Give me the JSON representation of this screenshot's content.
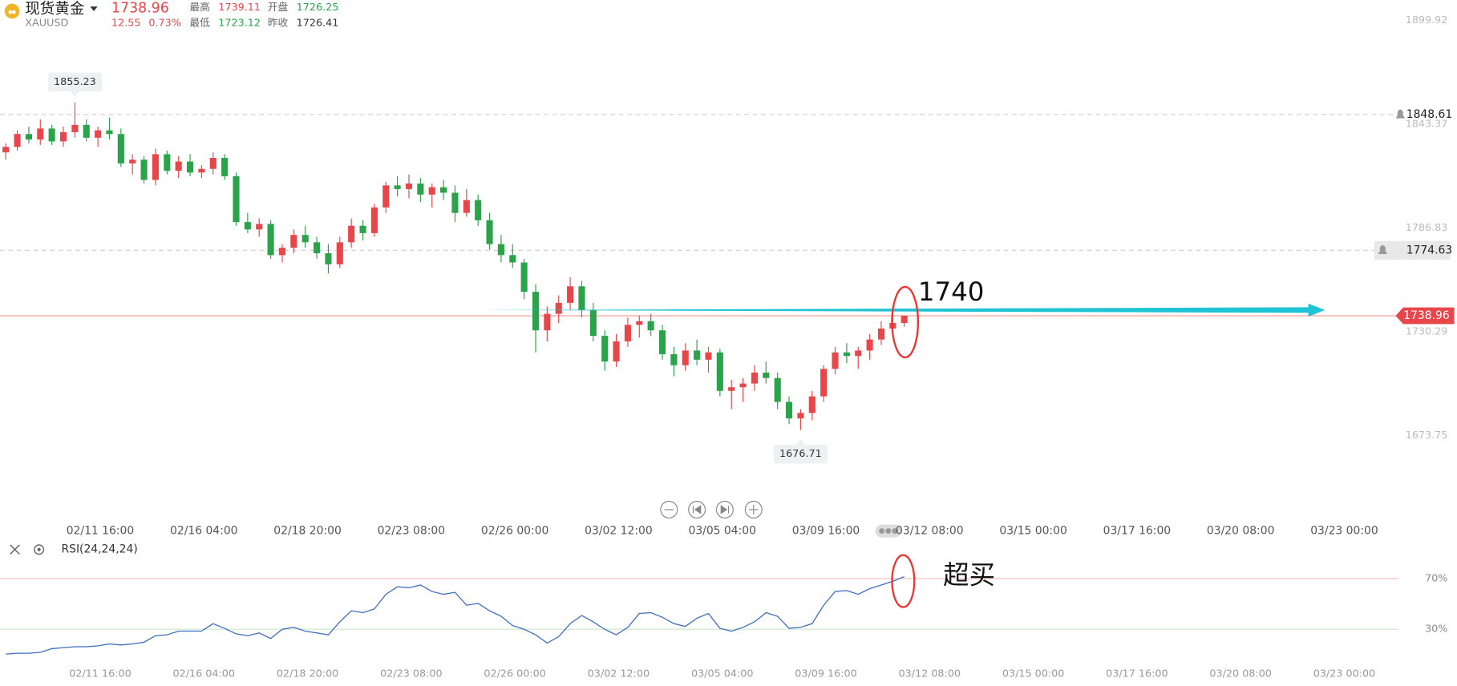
{
  "header": {
    "name": "现货黄金",
    "symbol": "XAUUSD",
    "price": 1738.96,
    "change": 12.55,
    "change_pct": "0.73%",
    "high_label": "最高",
    "high": 1739.11,
    "open_label": "开盘",
    "open": 1726.25,
    "low_label": "最低",
    "low": 1723.12,
    "prev_close_label": "昨收",
    "prev_close": 1726.41
  },
  "chart_data": [
    {
      "type": "candlestick",
      "up_color": "#e8464a",
      "down_color": "#2aa34a",
      "values": [
        [
          1828,
          1833,
          1824,
          1831
        ],
        [
          1831,
          1840,
          1829,
          1838
        ],
        [
          1838,
          1842,
          1833,
          1835
        ],
        [
          1835,
          1846,
          1832,
          1841
        ],
        [
          1841,
          1843,
          1832,
          1834
        ],
        [
          1834,
          1842,
          1831,
          1839
        ],
        [
          1839,
          1855.23,
          1836,
          1843
        ],
        [
          1843,
          1846,
          1834,
          1836
        ],
        [
          1836,
          1842,
          1831,
          1840
        ],
        [
          1840,
          1847,
          1835,
          1838
        ],
        [
          1838,
          1841,
          1820,
          1822
        ],
        [
          1822,
          1827,
          1816,
          1824
        ],
        [
          1824,
          1826,
          1811,
          1813
        ],
        [
          1813,
          1830,
          1810,
          1827
        ],
        [
          1827,
          1829,
          1816,
          1818
        ],
        [
          1818,
          1826,
          1814,
          1823
        ],
        [
          1823,
          1827,
          1815,
          1817
        ],
        [
          1817,
          1821,
          1814,
          1819
        ],
        [
          1819,
          1828,
          1816,
          1825
        ],
        [
          1825,
          1827,
          1813,
          1815
        ],
        [
          1815,
          1817,
          1788,
          1790
        ],
        [
          1790,
          1795,
          1784,
          1786
        ],
        [
          1786,
          1792,
          1782,
          1789
        ],
        [
          1789,
          1791,
          1770,
          1772
        ],
        [
          1772,
          1778,
          1768,
          1776
        ],
        [
          1776,
          1786,
          1773,
          1783
        ],
        [
          1783,
          1788,
          1776,
          1779
        ],
        [
          1779,
          1782,
          1770,
          1773
        ],
        [
          1773,
          1778,
          1762,
          1767
        ],
        [
          1767,
          1782,
          1765,
          1779
        ],
        [
          1779,
          1792,
          1776,
          1788
        ],
        [
          1788,
          1791,
          1780,
          1784
        ],
        [
          1784,
          1800,
          1782,
          1798
        ],
        [
          1798,
          1812,
          1795,
          1810
        ],
        [
          1810,
          1815,
          1804,
          1808
        ],
        [
          1808,
          1816,
          1803,
          1811
        ],
        [
          1811,
          1814,
          1801,
          1805
        ],
        [
          1805,
          1811,
          1798,
          1809
        ],
        [
          1809,
          1813,
          1802,
          1806
        ],
        [
          1806,
          1810,
          1790,
          1795
        ],
        [
          1795,
          1808,
          1793,
          1802
        ],
        [
          1802,
          1805,
          1788,
          1791
        ],
        [
          1791,
          1795,
          1775,
          1778
        ],
        [
          1778,
          1783,
          1768,
          1772
        ],
        [
          1772,
          1778,
          1765,
          1768
        ],
        [
          1768,
          1770,
          1748,
          1752
        ],
        [
          1752,
          1756,
          1719,
          1731
        ],
        [
          1731,
          1744,
          1725,
          1740
        ],
        [
          1740,
          1750,
          1735,
          1746
        ],
        [
          1746,
          1760,
          1742,
          1755
        ],
        [
          1755,
          1758,
          1738,
          1742
        ],
        [
          1742,
          1746,
          1725,
          1728
        ],
        [
          1728,
          1731,
          1709,
          1714
        ],
        [
          1714,
          1729,
          1711,
          1725
        ],
        [
          1725,
          1738,
          1722,
          1734
        ],
        [
          1734,
          1739,
          1727,
          1736
        ],
        [
          1736,
          1740,
          1728,
          1731
        ],
        [
          1731,
          1734,
          1715,
          1718
        ],
        [
          1718,
          1722,
          1706,
          1712
        ],
        [
          1712,
          1724,
          1709,
          1720
        ],
        [
          1720,
          1726,
          1712,
          1715
        ],
        [
          1715,
          1722,
          1708,
          1719
        ],
        [
          1719,
          1721,
          1695,
          1698
        ],
        [
          1698,
          1704,
          1688,
          1700
        ],
        [
          1700,
          1705,
          1692,
          1702
        ],
        [
          1702,
          1712,
          1698,
          1708
        ],
        [
          1708,
          1714,
          1702,
          1705
        ],
        [
          1705,
          1708,
          1688,
          1692
        ],
        [
          1692,
          1695,
          1680,
          1683
        ],
        [
          1683,
          1688,
          1676.71,
          1686
        ],
        [
          1686,
          1698,
          1682,
          1695
        ],
        [
          1695,
          1712,
          1692,
          1710
        ],
        [
          1710,
          1722,
          1707,
          1719
        ],
        [
          1719,
          1724,
          1713,
          1717
        ],
        [
          1717,
          1722,
          1710,
          1720
        ],
        [
          1720,
          1729,
          1715,
          1726
        ],
        [
          1726,
          1736,
          1723,
          1732
        ],
        [
          1732,
          1742,
          1728,
          1735
        ],
        [
          1735,
          1739.11,
          1733,
          1738.96
        ]
      ],
      "xlim": [
        0,
        121.4
      ],
      "xticks": [
        {
          "value": 8.7,
          "label": "02/11 16:00"
        },
        {
          "value": 17.7,
          "label": "02/16 04:00"
        },
        {
          "value": 26.7,
          "label": "02/18 20:00"
        },
        {
          "value": 35.7,
          "label": "02/23 08:00"
        },
        {
          "value": 44.7,
          "label": "02/26 00:00"
        },
        {
          "value": 53.7,
          "label": "03/02 12:00"
        },
        {
          "value": 62.7,
          "label": "03/05 04:00"
        },
        {
          "value": 71.7,
          "label": "03/09 16:00"
        },
        {
          "value": 80.7,
          "label": "03/12 08:00"
        },
        {
          "value": 89.7,
          "label": "03/15 00:00"
        },
        {
          "value": 98.7,
          "label": "03/17 16:00"
        },
        {
          "value": 107.7,
          "label": "03/20 08:00"
        },
        {
          "value": 116.7,
          "label": "03/23 00:00"
        }
      ],
      "ylim": [
        1642.9,
        1911.05
      ],
      "yticks": [
        1673.75,
        1730.29,
        1786.83,
        1843.37,
        1899.92
      ],
      "alert_lines": [
        1848.61,
        1774.63
      ],
      "last_price": 1738.96,
      "annotation": "1740"
    },
    {
      "type": "line",
      "title": "RSI(24,24,24)",
      "color": "#3d6cc0",
      "values": [
        10.4,
        11.1,
        11.1,
        11.8,
        14.7,
        15.5,
        16.2,
        16.2,
        16.9,
        18.4,
        17.6,
        18.4,
        19.8,
        24.9,
        25.6,
        28.5,
        28.5,
        28.5,
        34.4,
        30.7,
        26.4,
        24.9,
        27.1,
        22.7,
        30,
        31.5,
        28.5,
        27.1,
        25.6,
        35.8,
        44.5,
        43.1,
        46,
        57.6,
        63.5,
        62.7,
        64.9,
        59.8,
        57.6,
        59.1,
        48.9,
        50.4,
        44.5,
        40.2,
        32.9,
        30,
        25.6,
        19.1,
        24.2,
        34.4,
        40.9,
        35.8,
        30,
        25.6,
        31.5,
        42.4,
        43.1,
        39.5,
        34.4,
        32.2,
        38.7,
        42.4,
        30.7,
        28.5,
        31.5,
        35.8,
        43.1,
        40.2,
        30.7,
        31.5,
        34.4,
        48.9,
        59.8,
        60.5,
        57.6,
        62,
        64.9,
        67.8,
        71.5
      ],
      "xlim": [
        0,
        121.4
      ],
      "xticks": [
        {
          "value": 8.7,
          "label": "02/11 16:00"
        },
        {
          "value": 17.7,
          "label": "02/16 04:00"
        },
        {
          "value": 26.7,
          "label": "02/18 20:00"
        },
        {
          "value": 35.7,
          "label": "02/23 08:00"
        },
        {
          "value": 44.7,
          "label": "02/26 00:00"
        },
        {
          "value": 53.7,
          "label": "03/02 12:00"
        },
        {
          "value": 62.7,
          "label": "03/05 04:00"
        },
        {
          "value": 71.7,
          "label": "03/09 16:00"
        },
        {
          "value": 80.7,
          "label": "03/12 08:00"
        },
        {
          "value": 89.7,
          "label": "03/15 00:00"
        },
        {
          "value": 98.7,
          "label": "03/17 16:00"
        },
        {
          "value": 107.7,
          "label": "03/20 08:00"
        },
        {
          "value": 116.7,
          "label": "03/23 00:00"
        }
      ],
      "ylim": [
        5,
        87
      ],
      "yticks": [
        {
          "value": 30,
          "label": "30%"
        },
        {
          "value": 70,
          "label": "70%"
        }
      ],
      "annotation": "超买"
    }
  ]
}
